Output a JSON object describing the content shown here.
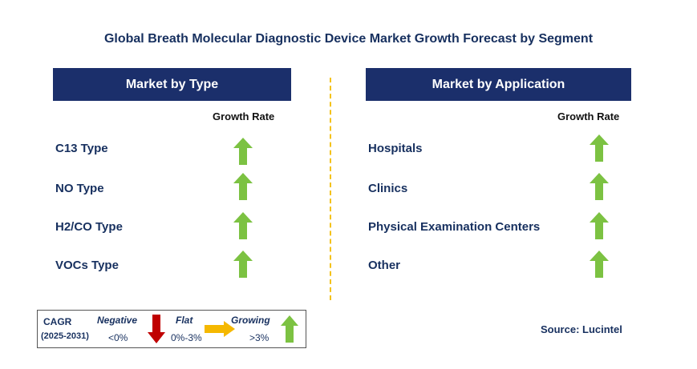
{
  "title": "Global Breath Molecular Diagnostic Device Market Growth Forecast by Segment",
  "colors": {
    "header_bg": "#1b2f6b",
    "growing": "#7cc242",
    "flat": "#f5b800",
    "negative": "#c00000",
    "divider": "#f4c21a"
  },
  "type_panel": {
    "header": "Market by Type",
    "column_label": "Growth Rate",
    "rows": [
      {
        "label": "C13 Type",
        "trend": "growing"
      },
      {
        "label": "NO Type",
        "trend": "growing"
      },
      {
        "label": "H2/CO Type",
        "trend": "growing"
      },
      {
        "label": "VOCs Type",
        "trend": "growing"
      }
    ]
  },
  "application_panel": {
    "header": "Market by Application",
    "column_label": "Growth Rate",
    "rows": [
      {
        "label": "Hospitals",
        "trend": "growing"
      },
      {
        "label": "Clinics",
        "trend": "growing"
      },
      {
        "label": "Physical Examination Centers",
        "trend": "growing"
      },
      {
        "label": "Other",
        "trend": "growing"
      }
    ]
  },
  "legend": {
    "cagr": "CAGR",
    "period": "(2025-2031)",
    "negative_label": "Negative",
    "negative_range": "<0%",
    "flat_label": "Flat",
    "flat_range": "0%-3%",
    "growing_label": "Growing",
    "growing_range": ">3%"
  },
  "source": "Source: Lucintel"
}
